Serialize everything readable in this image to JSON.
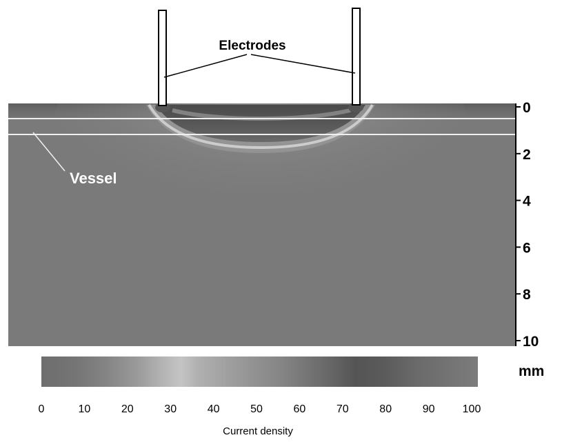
{
  "labels": {
    "electrodes": "Electrodes",
    "vessel": "Vessel",
    "depth_unit": "mm",
    "colorbar_title": "Current density"
  },
  "depth_ticks": [
    "0",
    "2",
    "4",
    "6",
    "8",
    "10"
  ],
  "colorbar_ticks": [
    "0",
    "10",
    "20",
    "30",
    "40",
    "50",
    "60",
    "70",
    "80",
    "90",
    "100"
  ],
  "colors": {
    "field_base": "#7a7a7a",
    "electrode_fill": "#ffffff",
    "electrode_stroke": "#000000",
    "vessel_line": "#f0f0f0"
  }
}
